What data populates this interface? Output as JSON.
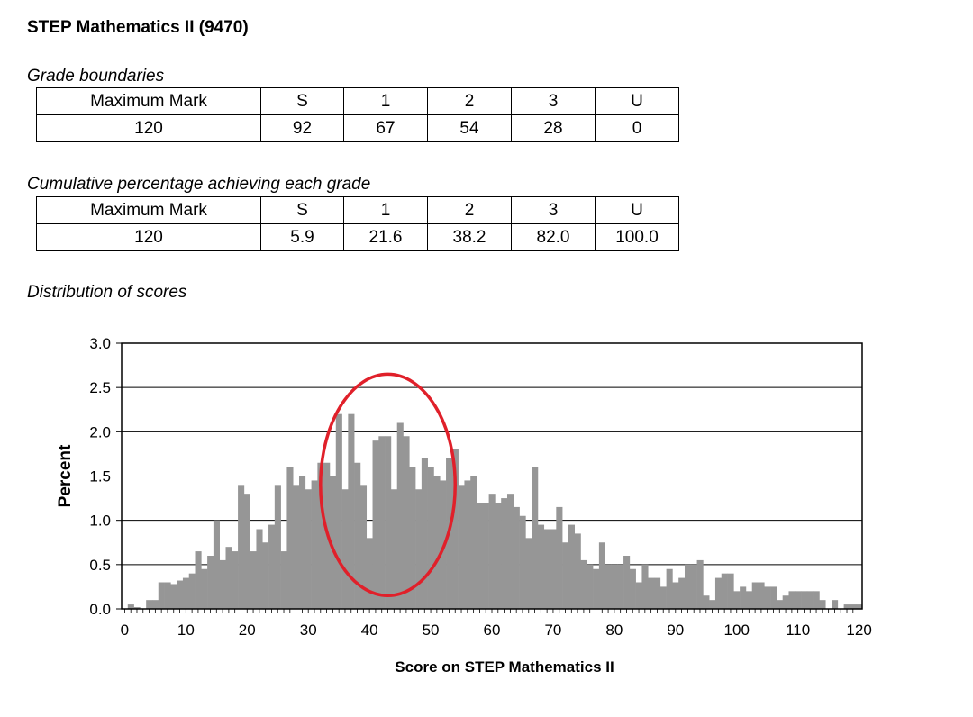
{
  "title": "STEP Mathematics II (9470)",
  "grade_boundaries": {
    "caption": "Grade boundaries",
    "headers": [
      "Maximum Mark",
      "S",
      "1",
      "2",
      "3",
      "U"
    ],
    "values": [
      "120",
      "92",
      "67",
      "54",
      "28",
      "0"
    ]
  },
  "cumulative": {
    "caption": "Cumulative percentage achieving each grade",
    "headers": [
      "Maximum Mark",
      "S",
      "1",
      "2",
      "3",
      "U"
    ],
    "values": [
      "120",
      "5.9",
      "21.6",
      "38.2",
      "82.0",
      "100.0"
    ]
  },
  "distribution_caption": "Distribution of scores",
  "chart_data": {
    "type": "bar",
    "xlabel": "Score on STEP Mathematics II",
    "ylabel": "Percent",
    "xlim": [
      0,
      120
    ],
    "ylim": [
      0,
      3.0
    ],
    "xticks": [
      "0",
      "10",
      "20",
      "30",
      "40",
      "50",
      "60",
      "70",
      "80",
      "90",
      "100",
      "110",
      "120"
    ],
    "yticks": [
      "0.0",
      "0.5",
      "1.0",
      "1.5",
      "2.0",
      "2.5",
      "3.0"
    ],
    "grid": "horizontal",
    "bar_color": "#969696",
    "annotation": {
      "shape": "ellipse",
      "color": "#e0202a",
      "center_score": 43,
      "center_percent": 1.4,
      "width_scores": 22,
      "height_percent": 2.5
    },
    "x": [
      0,
      1,
      2,
      3,
      4,
      5,
      6,
      7,
      8,
      9,
      10,
      11,
      12,
      13,
      14,
      15,
      16,
      17,
      18,
      19,
      20,
      21,
      22,
      23,
      24,
      25,
      26,
      27,
      28,
      29,
      30,
      31,
      32,
      33,
      34,
      35,
      36,
      37,
      38,
      39,
      40,
      41,
      42,
      43,
      44,
      45,
      46,
      47,
      48,
      49,
      50,
      51,
      52,
      53,
      54,
      55,
      56,
      57,
      58,
      59,
      60,
      61,
      62,
      63,
      64,
      65,
      66,
      67,
      68,
      69,
      70,
      71,
      72,
      73,
      74,
      75,
      76,
      77,
      78,
      79,
      80,
      81,
      82,
      83,
      84,
      85,
      86,
      87,
      88,
      89,
      90,
      91,
      92,
      93,
      94,
      95,
      96,
      97,
      98,
      99,
      100,
      101,
      102,
      103,
      104,
      105,
      106,
      107,
      108,
      109,
      110,
      111,
      112,
      113,
      114,
      115,
      116,
      117,
      118,
      119,
      120
    ],
    "values": [
      0.0,
      0.05,
      0.02,
      0.0,
      0.1,
      0.1,
      0.3,
      0.3,
      0.28,
      0.32,
      0.35,
      0.4,
      0.65,
      0.45,
      0.6,
      1.0,
      0.55,
      0.7,
      0.65,
      1.4,
      1.3,
      0.65,
      0.9,
      0.75,
      0.95,
      1.4,
      0.65,
      1.6,
      1.4,
      1.5,
      1.35,
      1.45,
      1.65,
      1.65,
      1.5,
      2.2,
      1.35,
      2.2,
      1.65,
      1.4,
      0.8,
      1.9,
      1.95,
      1.95,
      1.35,
      2.1,
      1.95,
      1.6,
      1.35,
      1.7,
      1.6,
      1.5,
      1.45,
      1.7,
      1.8,
      1.4,
      1.45,
      1.5,
      1.2,
      1.2,
      1.3,
      1.2,
      1.25,
      1.3,
      1.15,
      1.05,
      0.8,
      1.6,
      0.95,
      0.9,
      0.9,
      1.15,
      0.75,
      0.95,
      0.85,
      0.55,
      0.5,
      0.45,
      0.75,
      0.5,
      0.5,
      0.5,
      0.6,
      0.45,
      0.3,
      0.5,
      0.35,
      0.35,
      0.25,
      0.45,
      0.3,
      0.35,
      0.5,
      0.5,
      0.55,
      0.15,
      0.1,
      0.35,
      0.4,
      0.4,
      0.2,
      0.25,
      0.2,
      0.3,
      0.3,
      0.25,
      0.25,
      0.1,
      0.15,
      0.2,
      0.2,
      0.2,
      0.2,
      0.2,
      0.1,
      0.0,
      0.1,
      0.0,
      0.05,
      0.05,
      0.05
    ]
  }
}
